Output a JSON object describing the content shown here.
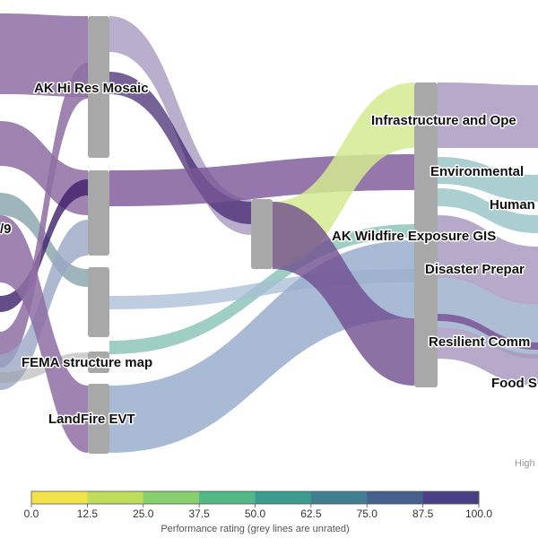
{
  "diagram": {
    "nodes": [
      {
        "id": "left-partial",
        "label": "/9"
      },
      {
        "id": "ak-hi-res",
        "label": "AK Hi Res Mosaic"
      },
      {
        "id": "fema",
        "label": "FEMA structure map"
      },
      {
        "id": "landfire",
        "label": "LandFire EVT"
      },
      {
        "id": "ak-wildfire",
        "label": "AK Wildfire Exposure GIS"
      },
      {
        "id": "infra",
        "label": "Infrastructure and Ope"
      },
      {
        "id": "env",
        "label": "Environmental"
      },
      {
        "id": "human",
        "label": "Human"
      },
      {
        "id": "disaster",
        "label": "Disaster Prepar"
      },
      {
        "id": "resilient",
        "label": "Resilient Comm"
      },
      {
        "id": "food",
        "label": "Food S"
      }
    ],
    "credit": "High",
    "colorbar": {
      "ticks": [
        "0.0",
        "12.5",
        "25.0",
        "37.5",
        "50.0",
        "62.5",
        "75.0",
        "87.5",
        "100.0"
      ],
      "title": "Performance rating (grey lines are unrated)",
      "colors": [
        "#f3e24a",
        "#bfdc5a",
        "#86cf6e",
        "#52b886",
        "#3a9b8e",
        "#3f7f91",
        "#46608e",
        "#493f86",
        "#3e1e65"
      ]
    }
  }
}
